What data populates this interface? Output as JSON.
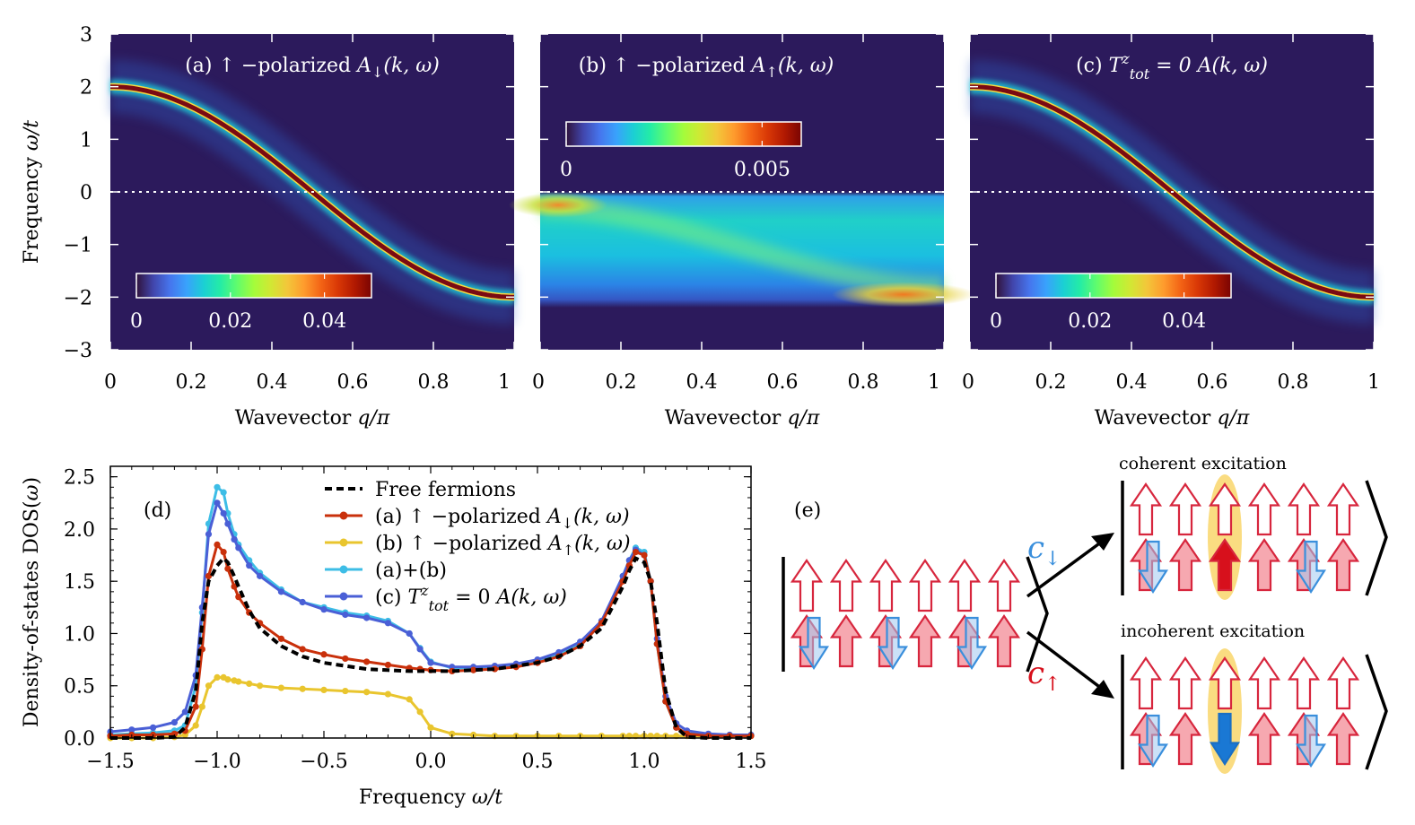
{
  "colors": {
    "bg_dark": "#2c1a5c",
    "band_red": "#7a0a12",
    "free_fermions": "#000000",
    "series_a": "#c9300b",
    "series_b": "#e9c52e",
    "series_ab": "#3dbde6",
    "series_c": "#4a5fd6",
    "spin_up": "#d7263d",
    "spin_down": "#3a8fdc",
    "highlight": "#f9d66b"
  },
  "colorscale": [
    "#30123b",
    "#4145ab",
    "#4675ed",
    "#39a2fc",
    "#1bcfd4",
    "#24eca6",
    "#61fc6c",
    "#a4fc3b",
    "#d1e834",
    "#f3c63a",
    "#fe9b2d",
    "#f36315",
    "#d93806",
    "#b11901",
    "#7a0403"
  ],
  "chart_data": [
    {
      "id": "a",
      "type": "heatmap",
      "title": "(a) ↑ −polarized A↓(k, ω)",
      "title_parts": {
        "prefix": "(a) ↑ −polarized ",
        "sym": "A",
        "sub": "↓",
        "args": "(k, ω)"
      },
      "xlabel": "Wavevector q/π",
      "ylabel": "Frequency ω/t",
      "xlim": [
        0,
        1
      ],
      "ylim": [
        -3,
        3
      ],
      "xticks": [
        "0",
        "0.2",
        "0.4",
        "0.6",
        "0.8",
        "1"
      ],
      "yticks": [
        "3",
        "2",
        "1",
        "0",
        "−1",
        "−2",
        "−3"
      ],
      "dispersion": "omega = 2t·cos(q)",
      "fermi_level_line": 0,
      "colorbar": {
        "min": 0,
        "max": 0.05,
        "tick_labels": [
          "0",
          "0.02",
          "0.04"
        ],
        "location": "lower-left"
      }
    },
    {
      "id": "b",
      "type": "heatmap",
      "title": "(b) ↑ −polarized A↑(k, ω)",
      "title_parts": {
        "prefix": "(b) ↑ −polarized ",
        "sym": "A",
        "sub": "↑",
        "args": "(k, ω)"
      },
      "xlabel": "Wavevector q/π",
      "xlim": [
        0,
        1
      ],
      "ylim": [
        -3,
        3
      ],
      "xticks": [
        "0",
        "0.2",
        "0.4",
        "0.6",
        "0.8",
        "1"
      ],
      "description_band": "broad continuum between ω/t ≈ −2 and 0",
      "fermi_level_line": 0,
      "colorbar": {
        "min": 0,
        "max": 0.006,
        "tick_labels": [
          "0",
          "0.005"
        ],
        "location": "upper-left"
      }
    },
    {
      "id": "c",
      "type": "heatmap",
      "title": "(c) Tᶻ_tot = 0 A(k, ω)",
      "title_parts": {
        "prefix": "(c) ",
        "sym": "T",
        "sup": "z",
        "sub": "tot",
        "args": " = 0 A(k, ω)"
      },
      "xlabel": "Wavevector q/π",
      "xlim": [
        0,
        1
      ],
      "ylim": [
        -3,
        3
      ],
      "xticks": [
        "0",
        "0.2",
        "0.4",
        "0.6",
        "0.8",
        "1"
      ],
      "dispersion": "omega = 2t·cos(q)",
      "fermi_level_line": 0,
      "colorbar": {
        "min": 0,
        "max": 0.05,
        "tick_labels": [
          "0",
          "0.02",
          "0.04"
        ],
        "location": "lower-left"
      }
    },
    {
      "id": "d",
      "type": "line",
      "panel_label": "(d)",
      "xlabel": "Frequency ω/t",
      "ylabel": "Density-of-states DOS(ω)",
      "xlim": [
        -1.5,
        1.5
      ],
      "ylim": [
        0,
        2.6
      ],
      "xticks": [
        "−1.5",
        "−1.0",
        "−0.5",
        "0.0",
        "0.5",
        "1.0",
        "1.5"
      ],
      "yticks": [
        "0.0",
        "0.5",
        "1.0",
        "1.5",
        "2.0",
        "2.5"
      ],
      "legend_location": "top-center",
      "x": [
        -1.5,
        -1.4,
        -1.3,
        -1.2,
        -1.15,
        -1.1,
        -1.07,
        -1.04,
        -1.0,
        -0.97,
        -0.95,
        -0.92,
        -0.9,
        -0.85,
        -0.8,
        -0.7,
        -0.6,
        -0.5,
        -0.4,
        -0.3,
        -0.2,
        -0.1,
        -0.05,
        0.0,
        0.1,
        0.2,
        0.3,
        0.4,
        0.5,
        0.6,
        0.7,
        0.8,
        0.9,
        0.93,
        0.96,
        1.0,
        1.03,
        1.06,
        1.1,
        1.15,
        1.2,
        1.3,
        1.4,
        1.5
      ],
      "series": [
        {
          "name": "Free fermions",
          "legend": "Free fermions",
          "style": "dashed",
          "values": [
            0.0,
            0.0,
            0.0,
            0.01,
            0.1,
            0.45,
            1.1,
            1.5,
            1.65,
            1.72,
            1.68,
            1.55,
            1.45,
            1.22,
            1.05,
            0.88,
            0.78,
            0.72,
            0.69,
            0.66,
            0.65,
            0.64,
            0.64,
            0.64,
            0.64,
            0.65,
            0.66,
            0.69,
            0.72,
            0.78,
            0.88,
            1.05,
            1.45,
            1.6,
            1.72,
            1.68,
            1.5,
            1.1,
            0.45,
            0.1,
            0.01,
            0.0,
            0.0,
            0.0
          ]
        },
        {
          "name": "(a)",
          "legend": "(a) ↑ −polarized A↓(k, ω)",
          "values": [
            0.02,
            0.03,
            0.03,
            0.04,
            0.07,
            0.3,
            0.85,
            1.55,
            1.85,
            1.78,
            1.62,
            1.45,
            1.35,
            1.2,
            1.1,
            0.95,
            0.85,
            0.8,
            0.76,
            0.73,
            0.7,
            0.67,
            0.66,
            0.65,
            0.64,
            0.65,
            0.66,
            0.68,
            0.72,
            0.78,
            0.88,
            1.1,
            1.5,
            1.65,
            1.78,
            1.75,
            1.5,
            0.9,
            0.35,
            0.1,
            0.04,
            0.02,
            0.02,
            0.02
          ]
        },
        {
          "name": "(b)",
          "legend": "(b) ↑ −polarized A↑(k, ω)",
          "values": [
            0.0,
            0.0,
            0.0,
            0.01,
            0.03,
            0.12,
            0.3,
            0.5,
            0.58,
            0.58,
            0.56,
            0.55,
            0.54,
            0.52,
            0.5,
            0.48,
            0.47,
            0.46,
            0.45,
            0.44,
            0.42,
            0.37,
            0.25,
            0.1,
            0.04,
            0.03,
            0.02,
            0.02,
            0.02,
            0.02,
            0.02,
            0.02,
            0.02,
            0.02,
            0.02,
            0.02,
            0.02,
            0.02,
            0.02,
            0.02,
            0.02,
            0.02,
            0.02,
            0.02
          ]
        },
        {
          "name": "(a)+(b)",
          "legend": "(a)+(b)",
          "values": [
            0.03,
            0.04,
            0.05,
            0.07,
            0.12,
            0.5,
            1.2,
            2.05,
            2.4,
            2.35,
            2.15,
            1.95,
            1.85,
            1.7,
            1.58,
            1.42,
            1.3,
            1.25,
            1.2,
            1.17,
            1.12,
            1.0,
            0.86,
            0.73,
            0.67,
            0.67,
            0.68,
            0.7,
            0.74,
            0.8,
            0.9,
            1.1,
            1.55,
            1.7,
            1.82,
            1.78,
            1.5,
            0.9,
            0.35,
            0.1,
            0.04,
            0.03,
            0.03,
            0.03
          ]
        },
        {
          "name": "(c)",
          "legend": "(c) Tᶻ_tot = 0 A(k, ω)",
          "values": [
            0.06,
            0.08,
            0.1,
            0.15,
            0.25,
            0.6,
            1.25,
            1.95,
            2.25,
            2.15,
            2.05,
            1.9,
            1.82,
            1.65,
            1.55,
            1.4,
            1.3,
            1.23,
            1.18,
            1.15,
            1.1,
            1.0,
            0.85,
            0.72,
            0.68,
            0.68,
            0.69,
            0.71,
            0.75,
            0.82,
            0.92,
            1.12,
            1.55,
            1.7,
            1.8,
            1.75,
            1.5,
            0.95,
            0.4,
            0.14,
            0.07,
            0.04,
            0.03,
            0.03
          ]
        }
      ]
    }
  ],
  "diagram_e": {
    "panel_label": "(e)",
    "operator_down": {
      "sym": "c",
      "sub": "↓"
    },
    "operator_up": {
      "sym": "c",
      "sub": "↑"
    },
    "coherent_label": "coherent excitation",
    "incoherent_label": "incoherent excitation",
    "initial_state": {
      "top_row": [
        "up-hollow",
        "up-hollow",
        "up-hollow",
        "up-hollow",
        "up-hollow",
        "up-hollow"
      ],
      "bottom_row": [
        "up-pink+down",
        "up-pink",
        "up-pink+down",
        "up-pink",
        "up-pink+down",
        "up-pink"
      ]
    },
    "coherent_state": {
      "top_row": [
        "up-hollow",
        "up-hollow",
        "up-hollow",
        "up-hollow",
        "up-hollow",
        "up-hollow"
      ],
      "bottom_row": [
        "up-pink+down",
        "up-pink",
        "up-solid-red",
        "up-pink",
        "up-pink+down",
        "up-pink"
      ]
    },
    "incoherent_state": {
      "top_row": [
        "up-hollow",
        "up-hollow",
        "up-hollow",
        "up-hollow",
        "up-hollow",
        "up-hollow"
      ],
      "bottom_row": [
        "up-pink+down",
        "up-pink",
        "down-solid-blue",
        "up-pink",
        "up-pink+down",
        "up-pink"
      ]
    }
  }
}
